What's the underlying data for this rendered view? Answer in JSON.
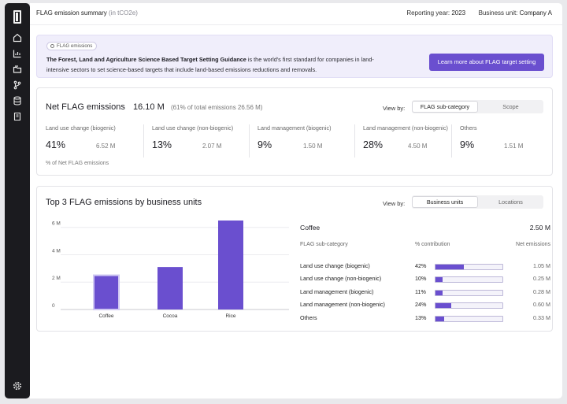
{
  "header": {
    "title": "FLAG emission summary",
    "unit": "(in tCO2e)",
    "reporting_year_label": "Reporting year:",
    "reporting_year": "2023",
    "business_unit_label": "Business unit:",
    "business_unit": "Company A"
  },
  "banner": {
    "chip": "FLAG emissions",
    "bold_text": "The Forest, Land and Agriculture Science Based Target Setting Guidance",
    "text": " is the world's first standard for companies in land-intensive sectors to set science-based targets that include land-based emissions reductions and removals.",
    "cta": "Learn more about FLAG target setting"
  },
  "net": {
    "title": "Net FLAG emissions",
    "value": "16.10 M",
    "note": "(61% of total emissions 26.56 M)",
    "view_by": "View by:",
    "options": [
      "FLAG sub-category",
      "Scope"
    ],
    "metrics": [
      {
        "label": "Land use change (biogenic)",
        "pct": "41%",
        "abs": "6.52 M"
      },
      {
        "label": "Land use change (non-biogenic)",
        "pct": "13%",
        "abs": "2.07 M"
      },
      {
        "label": "Land management (biogenic)",
        "pct": "9%",
        "abs": "1.50 M"
      },
      {
        "label": "Land management (non-biogenic)",
        "pct": "28%",
        "abs": "4.50 M"
      },
      {
        "label": "Others",
        "pct": "9%",
        "abs": "1.51 M"
      }
    ],
    "footnote": "% of Net FLAG emissions"
  },
  "top3": {
    "title": "Top 3 FLAG emissions by business units",
    "view_by": "View by:",
    "options": [
      "Business units",
      "Locations"
    ],
    "detail": {
      "name": "Coffee",
      "total": "2.50 M",
      "col_category": "FLAG sub-category",
      "col_contribution": "% contribution",
      "col_net": "Net emissions",
      "rows": [
        {
          "category": "Land use change (biogenic)",
          "pct": "42%",
          "fraction": 0.42,
          "net": "1.05 M"
        },
        {
          "category": "Land use change (non-biogenic)",
          "pct": "10%",
          "fraction": 0.1,
          "net": "0.25 M"
        },
        {
          "category": "Land management (biogenic)",
          "pct": "11%",
          "fraction": 0.11,
          "net": "0.28 M"
        },
        {
          "category": "Land management (non-biogenic)",
          "pct": "24%",
          "fraction": 0.24,
          "net": "0.60 M"
        },
        {
          "category": "Others",
          "pct": "13%",
          "fraction": 0.13,
          "net": "0.33 M"
        }
      ]
    }
  },
  "chart_data": {
    "type": "bar",
    "title": "Top 3 FLAG emissions by business units",
    "categories": [
      "Coffee",
      "Cocoa",
      "Rice"
    ],
    "values": [
      2.5,
      3.1,
      6.5
    ],
    "ytick_labels": [
      "0",
      "2 M",
      "4 M",
      "6 M"
    ],
    "ylim": [
      0,
      6.5
    ],
    "xlabel": "",
    "ylabel": "",
    "selected": "Coffee",
    "bar_color": "#6a4fcf"
  }
}
